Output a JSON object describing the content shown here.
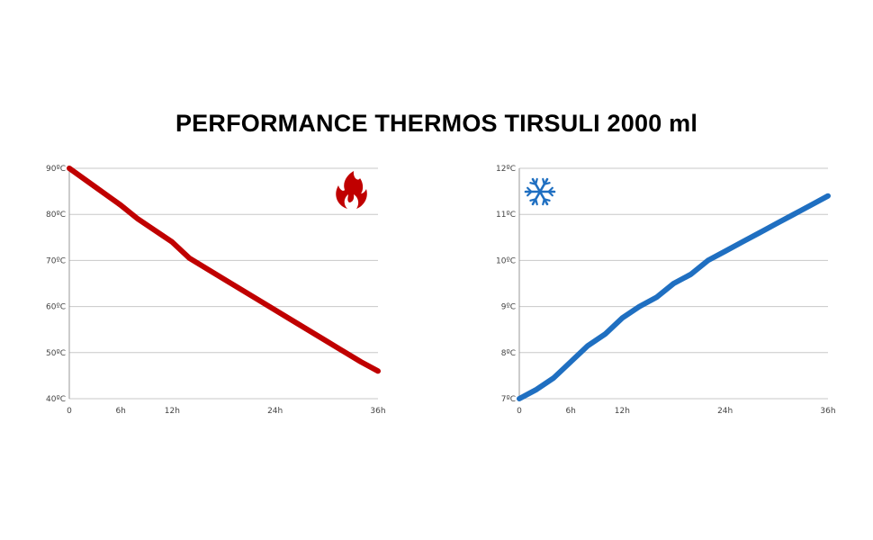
{
  "title": "PERFORMANCE THERMOS TIRSULI 2000 ml",
  "chart_data": [
    {
      "id": "hot",
      "type": "line",
      "icon": "fire-icon",
      "color": "#c00000",
      "ylim": [
        40,
        90
      ],
      "xlim": [
        0,
        36
      ],
      "grid": true,
      "y_ticks": [
        {
          "value": 90,
          "label": "90ºC"
        },
        {
          "value": 80,
          "label": "80ºC"
        },
        {
          "value": 70,
          "label": "70ºC"
        },
        {
          "value": 60,
          "label": "60ºC"
        },
        {
          "value": 50,
          "label": "50ºC"
        },
        {
          "value": 40,
          "label": "40ºC"
        }
      ],
      "x_ticks": [
        {
          "value": 0,
          "label": "0"
        },
        {
          "value": 6,
          "label": "6h"
        },
        {
          "value": 12,
          "label": "12h"
        },
        {
          "value": 24,
          "label": "24h"
        },
        {
          "value": 36,
          "label": "36h"
        }
      ],
      "series": [
        {
          "x": [
            0,
            3,
            6,
            8,
            10,
            12,
            14,
            18,
            22,
            26,
            30,
            34,
            36
          ],
          "y": [
            90,
            86,
            82,
            79,
            76.5,
            74,
            70.5,
            66,
            61.5,
            57,
            52.5,
            48,
            46
          ]
        }
      ]
    },
    {
      "id": "cold",
      "type": "line",
      "icon": "snowflake-icon",
      "color": "#1f6fc1",
      "ylim": [
        7,
        12
      ],
      "xlim": [
        0,
        36
      ],
      "grid": true,
      "y_ticks": [
        {
          "value": 12,
          "label": "12ºC"
        },
        {
          "value": 11,
          "label": "11ºC"
        },
        {
          "value": 10,
          "label": "10ºC"
        },
        {
          "value": 9,
          "label": "9ºC"
        },
        {
          "value": 8,
          "label": "8ºC"
        },
        {
          "value": 7,
          "label": "7ºC"
        }
      ],
      "x_ticks": [
        {
          "value": 0,
          "label": "0"
        },
        {
          "value": 6,
          "label": "6h"
        },
        {
          "value": 12,
          "label": "12h"
        },
        {
          "value": 24,
          "label": "24h"
        },
        {
          "value": 36,
          "label": "36h"
        }
      ],
      "series": [
        {
          "x": [
            0,
            2,
            4,
            6,
            8,
            10,
            12,
            14,
            16,
            18,
            20,
            22,
            24,
            26,
            28,
            30,
            32,
            34,
            36
          ],
          "y": [
            7,
            7.2,
            7.45,
            7.8,
            8.15,
            8.4,
            8.75,
            9.0,
            9.2,
            9.5,
            9.7,
            10.0,
            10.2,
            10.4,
            10.6,
            10.8,
            11.0,
            11.2,
            11.4
          ]
        }
      ]
    }
  ]
}
